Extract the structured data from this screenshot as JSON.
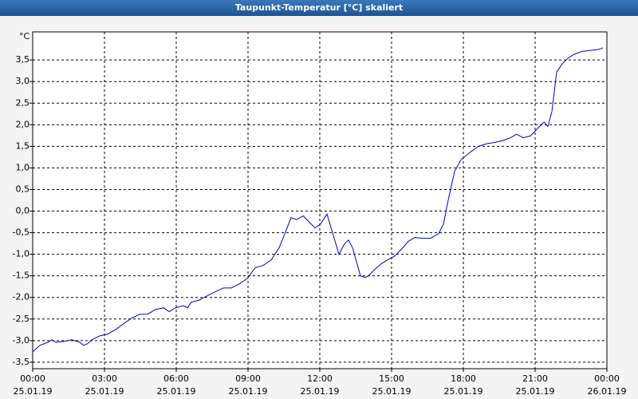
{
  "chart_data": {
    "type": "line",
    "title": "Taupunkt-Temperatur [°C] skaliert",
    "ylabel": "°C",
    "xlim": [
      0,
      24
    ],
    "ylim": [
      -3.65,
      4.15
    ],
    "grid": true,
    "xticks": [
      {
        "value": 0,
        "label": "00:00"
      },
      {
        "value": 3,
        "label": "03:00"
      },
      {
        "value": 6,
        "label": "06:00"
      },
      {
        "value": 9,
        "label": "09:00"
      },
      {
        "value": 12,
        "label": "12:00"
      },
      {
        "value": 15,
        "label": "15:00"
      },
      {
        "value": 18,
        "label": "18:00"
      },
      {
        "value": 21,
        "label": "21:00"
      },
      {
        "value": 24,
        "label": "00:00"
      }
    ],
    "xtick_dates": [
      "25.01.19",
      "25.01.19",
      "25.01.19",
      "25.01.19",
      "25.01.19",
      "25.01.19",
      "25.01.19",
      "25.01.19",
      "26.01.19"
    ],
    "yticks": [
      {
        "value": 3.5,
        "label": "3,5"
      },
      {
        "value": 3,
        "label": "3,0"
      },
      {
        "value": 2.5,
        "label": "2,5"
      },
      {
        "value": 2,
        "label": "2,0"
      },
      {
        "value": 1.5,
        "label": "1,5"
      },
      {
        "value": 1,
        "label": "1,0"
      },
      {
        "value": 0.5,
        "label": "0,5"
      },
      {
        "value": 0,
        "label": "0,0"
      },
      {
        "value": -0.5,
        "label": "-0,5"
      },
      {
        "value": -1,
        "label": "-1,0"
      },
      {
        "value": -1.5,
        "label": "-1,5"
      },
      {
        "value": -2,
        "label": "-2,0"
      },
      {
        "value": -2.5,
        "label": "-2,5"
      },
      {
        "value": -3,
        "label": "-3,0"
      },
      {
        "value": -3.5,
        "label": "-3,5"
      }
    ],
    "series": [
      {
        "color": "#0000cc",
        "x": [
          0,
          0.3,
          0.63,
          0.8,
          0.97,
          1.3,
          1.63,
          1.97,
          2.13,
          2.3,
          2.47,
          2.8,
          3.13,
          3.47,
          3.8,
          4.13,
          4.47,
          4.8,
          5.13,
          5.47,
          5.7,
          5.97,
          6.3,
          6.47,
          6.63,
          6.97,
          7.3,
          7.63,
          7.97,
          8.3,
          8.63,
          8.97,
          9.3,
          9.63,
          9.97,
          10.3,
          10.57,
          10.8,
          11.03,
          11.3,
          11.57,
          11.8,
          12.03,
          12.3,
          12.57,
          12.8,
          13.03,
          13.2,
          13.37,
          13.7,
          13.9,
          14.03,
          14.3,
          14.57,
          14.83,
          15.13,
          15.47,
          15.7,
          15.97,
          16.3,
          16.63,
          16.97,
          17.17,
          17.37,
          17.63,
          17.9,
          18.3,
          18.63,
          18.97,
          19.3,
          19.63,
          19.97,
          20.23,
          20.5,
          20.8,
          21.13,
          21.37,
          21.53,
          21.7,
          21.9,
          22.13,
          22.37,
          22.63,
          22.97,
          23.3,
          23.63,
          23.83
        ],
        "values": [
          -3.26,
          -3.11,
          -3.04,
          -2.98,
          -3.04,
          -3.02,
          -2.98,
          -3.04,
          -3.11,
          -3.07,
          -2.98,
          -2.89,
          -2.85,
          -2.74,
          -2.61,
          -2.48,
          -2.39,
          -2.39,
          -2.28,
          -2.24,
          -2.33,
          -2.24,
          -2.19,
          -2.24,
          -2.11,
          -2.06,
          -1.96,
          -1.87,
          -1.78,
          -1.78,
          -1.69,
          -1.56,
          -1.31,
          -1.26,
          -1.13,
          -0.85,
          -0.48,
          -0.15,
          -0.2,
          -0.11,
          -0.26,
          -0.39,
          -0.3,
          -0.07,
          -0.57,
          -1.0,
          -0.76,
          -0.67,
          -0.85,
          -1.5,
          -1.54,
          -1.5,
          -1.35,
          -1.22,
          -1.13,
          -1.04,
          -0.85,
          -0.7,
          -0.61,
          -0.63,
          -0.63,
          -0.52,
          -0.3,
          0.26,
          0.91,
          1.19,
          1.37,
          1.5,
          1.56,
          1.59,
          1.63,
          1.7,
          1.78,
          1.7,
          1.74,
          1.93,
          2.06,
          1.96,
          2.3,
          3.22,
          3.41,
          3.54,
          3.63,
          3.7,
          3.72,
          3.74,
          3.78
        ]
      }
    ]
  }
}
